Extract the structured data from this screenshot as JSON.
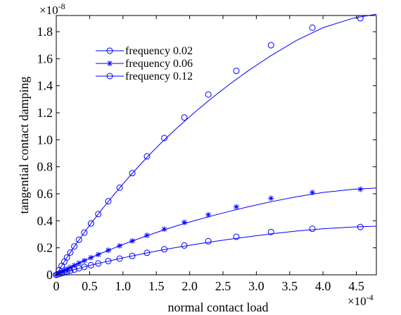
{
  "chart_data": {
    "type": "line",
    "title": "",
    "xlabel": "normal contact load",
    "ylabel": "tangential contact damping",
    "x_multiplier": "×10",
    "x_exponent": "-4",
    "y_multiplier": "×10",
    "y_exponent": "-8",
    "xlim": [
      0,
      4.8
    ],
    "ylim": [
      0,
      1.92
    ],
    "x_ticks": [
      0,
      0.5,
      1.0,
      1.5,
      2.0,
      2.5,
      3.0,
      3.5,
      4.0,
      4.5
    ],
    "x_tick_labels": [
      "0",
      "0.5",
      "1.0",
      "1.5",
      "2.0",
      "2.5",
      "3.0",
      "3.5",
      "4.0",
      "4.5"
    ],
    "y_ticks": [
      0,
      0.2,
      0.4,
      0.6,
      0.8,
      1.0,
      1.2,
      1.4,
      1.6,
      1.8
    ],
    "y_tick_labels": [
      "0",
      "0.2",
      "0.4",
      "0.6",
      "0.8",
      "1.0",
      "1.2",
      "1.4",
      "1.6",
      "1.8"
    ],
    "grid": false,
    "legend_position": "top-left",
    "line_color": "#0000ff",
    "series": [
      {
        "name": "frequency 0.02",
        "marker": "circle",
        "x": [
          0,
          0.005,
          0.01,
          0.02,
          0.03,
          0.045,
          0.06,
          0.08,
          0.1,
          0.13,
          0.16,
          0.2,
          0.25,
          0.3,
          0.36,
          0.42,
          0.5,
          0.59,
          0.69,
          0.8,
          0.93,
          1.08,
          1.24,
          1.41,
          1.6,
          1.82,
          2.05,
          2.3,
          2.58,
          2.88,
          3.22,
          3.6,
          4.0,
          4.45,
          4.8
        ],
        "y": [
          0,
          0.005,
          0.009,
          0.018,
          0.026,
          0.038,
          0.05,
          0.066,
          0.082,
          0.105,
          0.128,
          0.157,
          0.194,
          0.23,
          0.272,
          0.313,
          0.367,
          0.425,
          0.488,
          0.555,
          0.632,
          0.718,
          0.806,
          0.896,
          0.99,
          1.092,
          1.192,
          1.296,
          1.404,
          1.512,
          1.623,
          1.735,
          1.83,
          1.9,
          1.93
        ],
        "markers_x": [
          0,
          0.04,
          0.08,
          0.12,
          0.16,
          0.21,
          0.27,
          0.34,
          0.42,
          0.52,
          0.63,
          0.78,
          0.95,
          1.14,
          1.36,
          1.62,
          1.92,
          2.28,
          2.7,
          3.22,
          3.84,
          4.56
        ],
        "markers_y": [
          0,
          0.035,
          0.066,
          0.097,
          0.128,
          0.165,
          0.21,
          0.26,
          0.313,
          0.38,
          0.45,
          0.545,
          0.645,
          0.753,
          0.877,
          1.013,
          1.165,
          1.335,
          1.51,
          1.7,
          1.83,
          1.9
        ]
      },
      {
        "name": "frequency 0.06",
        "marker": "star",
        "x": [
          0,
          0.005,
          0.01,
          0.02,
          0.03,
          0.045,
          0.06,
          0.08,
          0.1,
          0.13,
          0.16,
          0.2,
          0.25,
          0.3,
          0.36,
          0.42,
          0.5,
          0.59,
          0.69,
          0.8,
          0.93,
          1.08,
          1.24,
          1.41,
          1.6,
          1.82,
          2.05,
          2.3,
          2.58,
          2.88,
          3.22,
          3.6,
          4.0,
          4.45,
          4.8
        ],
        "y": [
          0,
          0.002,
          0.003,
          0.006,
          0.009,
          0.013,
          0.017,
          0.022,
          0.028,
          0.035,
          0.043,
          0.053,
          0.065,
          0.077,
          0.091,
          0.105,
          0.123,
          0.142,
          0.163,
          0.185,
          0.211,
          0.24,
          0.268,
          0.298,
          0.33,
          0.365,
          0.398,
          0.432,
          0.468,
          0.504,
          0.541,
          0.578,
          0.61,
          0.633,
          0.643
        ],
        "markers_x": [
          0,
          0.04,
          0.08,
          0.12,
          0.16,
          0.21,
          0.27,
          0.34,
          0.42,
          0.52,
          0.63,
          0.78,
          0.95,
          1.14,
          1.36,
          1.62,
          1.92,
          2.28,
          2.7,
          3.22,
          3.84,
          4.56
        ],
        "markers_y": [
          0,
          0.012,
          0.022,
          0.032,
          0.043,
          0.055,
          0.07,
          0.087,
          0.105,
          0.127,
          0.15,
          0.182,
          0.215,
          0.251,
          0.292,
          0.338,
          0.388,
          0.445,
          0.503,
          0.567,
          0.61,
          0.633
        ]
      },
      {
        "name": "frequency 0.12",
        "marker": "circle",
        "x": [
          0,
          0.005,
          0.01,
          0.02,
          0.03,
          0.045,
          0.06,
          0.08,
          0.1,
          0.13,
          0.16,
          0.2,
          0.25,
          0.3,
          0.36,
          0.42,
          0.5,
          0.59,
          0.69,
          0.8,
          0.93,
          1.08,
          1.24,
          1.41,
          1.6,
          1.82,
          2.05,
          2.3,
          2.58,
          2.88,
          3.22,
          3.6,
          4.0,
          4.45,
          4.8
        ],
        "y": [
          0,
          0.001,
          0.002,
          0.003,
          0.005,
          0.007,
          0.009,
          0.012,
          0.015,
          0.019,
          0.024,
          0.029,
          0.036,
          0.043,
          0.051,
          0.059,
          0.069,
          0.08,
          0.091,
          0.103,
          0.118,
          0.134,
          0.15,
          0.167,
          0.185,
          0.204,
          0.223,
          0.242,
          0.262,
          0.282,
          0.303,
          0.324,
          0.341,
          0.354,
          0.36
        ],
        "markers_x": [
          0,
          0.04,
          0.08,
          0.12,
          0.16,
          0.21,
          0.27,
          0.34,
          0.42,
          0.52,
          0.63,
          0.78,
          0.95,
          1.14,
          1.36,
          1.62,
          1.92,
          2.28,
          2.7,
          3.22,
          3.84,
          4.56
        ],
        "markers_y": [
          0,
          0.006,
          0.012,
          0.018,
          0.024,
          0.031,
          0.039,
          0.049,
          0.059,
          0.071,
          0.084,
          0.102,
          0.12,
          0.14,
          0.163,
          0.189,
          0.217,
          0.249,
          0.282,
          0.317,
          0.341,
          0.354
        ]
      }
    ]
  }
}
